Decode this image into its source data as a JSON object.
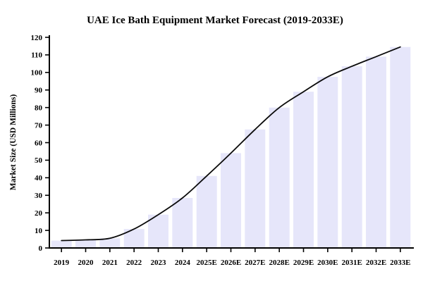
{
  "page": {
    "background": "#ffffff"
  },
  "chart_data": {
    "type": "bar",
    "overlay_line": "smooth line drawn through the same series values",
    "title": "UAE Ice Bath Equipment Market Forecast (2019-2033E)",
    "xlabel": "",
    "ylabel": "Market Size (USD Millions)",
    "categories": [
      "2019",
      "2020",
      "2021",
      "2022",
      "2023",
      "2024",
      "2025E",
      "2026E",
      "2027E",
      "2028E",
      "2029E",
      "2030E",
      "2031E",
      "2032E",
      "2033E"
    ],
    "values": [
      4.2,
      4.6,
      5.5,
      10.8,
      19.0,
      28.5,
      41.0,
      54.0,
      67.5,
      80.0,
      89.0,
      97.5,
      103.5,
      109.0,
      114.5
    ],
    "ylim": [
      0,
      120
    ],
    "ytick_step": 10,
    "grid": false,
    "legend": false,
    "bar_color": "#e6e6fa",
    "line_color": "#0a0a0a",
    "axis_color": "#000000"
  }
}
